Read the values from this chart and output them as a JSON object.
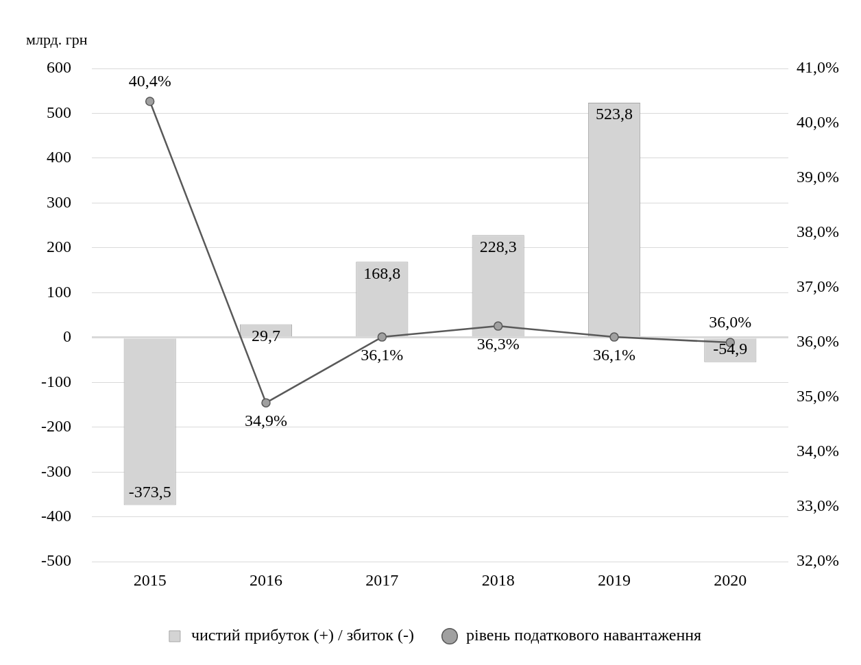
{
  "chart_data": {
    "type": "bar",
    "ylabel": "млрд. грн",
    "categories": [
      "2015",
      "2016",
      "2017",
      "2018",
      "2019",
      "2020"
    ],
    "series": [
      {
        "name": "чистий прибуток (+) / збиток (-)",
        "color": "#d4d4d4",
        "values": [
          -373.5,
          29.7,
          168.8,
          228.3,
          523.8,
          -54.9
        ],
        "value_labels": [
          "-373,5",
          "29,7",
          "168,8",
          "228,3",
          "523,8",
          "-54,9"
        ]
      },
      {
        "name": "рівень податкового навантаження",
        "type": "line",
        "axis": "y2",
        "color": "#595959",
        "values": [
          40.4,
          34.9,
          36.1,
          36.3,
          36.1,
          36.0
        ],
        "value_labels": [
          "40,4%",
          "34,9%",
          "36,1%",
          "36,3%",
          "36,1%",
          "36,0%"
        ]
      }
    ],
    "ylim": [
      -500,
      600
    ],
    "yticks": [
      -500,
      -400,
      -300,
      -200,
      -100,
      0,
      100,
      200,
      300,
      400,
      500,
      600
    ],
    "y2lim": [
      32,
      41
    ],
    "y2ticks": [
      {
        "value": 32,
        "label": "32,0%"
      },
      {
        "value": 33,
        "label": "33,0%"
      },
      {
        "value": 34,
        "label": "34,0%"
      },
      {
        "value": 35,
        "label": "35,0%"
      },
      {
        "value": 36,
        "label": "36,0%"
      },
      {
        "value": 37,
        "label": "37,0%"
      },
      {
        "value": 38,
        "label": "38,0%"
      },
      {
        "value": 39,
        "label": "39,0%"
      },
      {
        "value": 40,
        "label": "40,0%"
      },
      {
        "value": 41,
        "label": "41,0%"
      }
    ],
    "grid": "y",
    "legend": "bottom",
    "marker": "circle"
  }
}
